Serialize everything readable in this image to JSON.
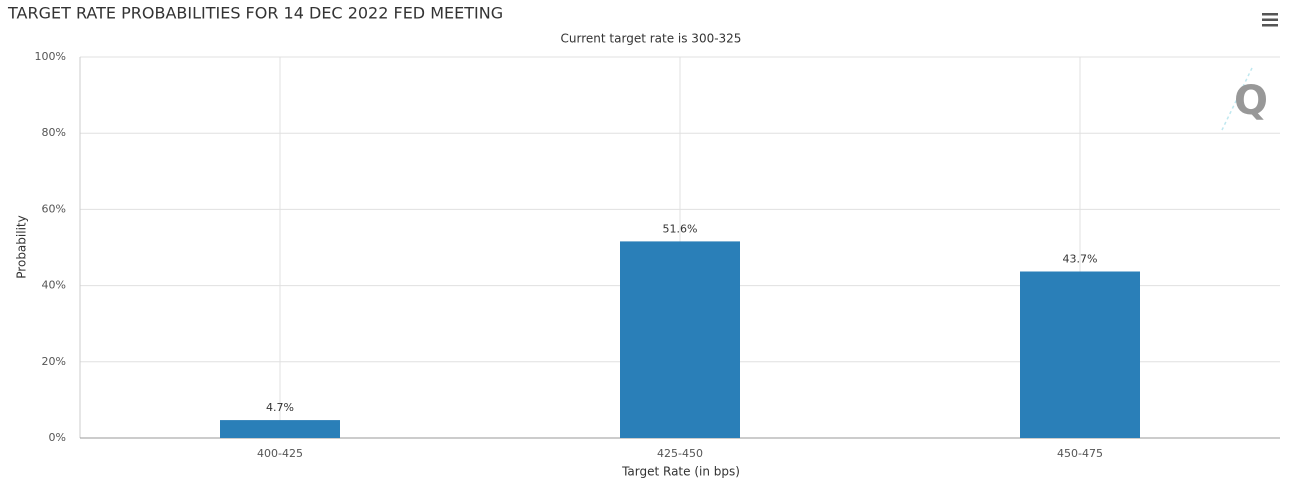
{
  "chart_data": {
    "type": "bar",
    "title": "TARGET RATE PROBABILITIES FOR 14 DEC 2022 FED MEETING",
    "subtitle": "Current target rate is 300-325",
    "x_label": "Target Rate (in bps)",
    "y_label": "Probability",
    "categories": [
      "400-425",
      "425-450",
      "450-475"
    ],
    "values": [
      4.7,
      51.6,
      43.7
    ],
    "value_labels": [
      "4.7%",
      "51.6%",
      "43.7%"
    ],
    "color": "#2a7fb8",
    "ylim": [
      0,
      100
    ],
    "yticks": [
      {
        "value": 0,
        "label": "0%"
      },
      {
        "value": 20,
        "label": "20%"
      },
      {
        "value": 40,
        "label": "40%"
      },
      {
        "value": 60,
        "label": "60%"
      },
      {
        "value": 80,
        "label": "80%"
      },
      {
        "value": 100,
        "label": "100%"
      }
    ],
    "grid": true
  }
}
